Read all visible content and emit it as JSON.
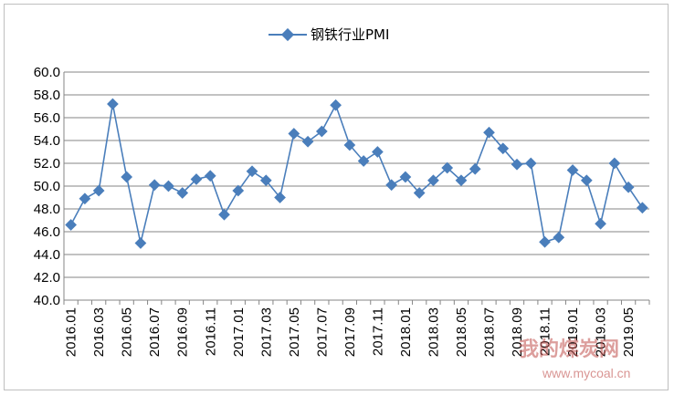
{
  "chart_data": {
    "type": "line",
    "title": "",
    "xlabel": "",
    "ylabel": "",
    "ylim": [
      40,
      60
    ],
    "yticks": [
      "40.0",
      "42.0",
      "44.0",
      "46.0",
      "48.0",
      "50.0",
      "52.0",
      "54.0",
      "56.0",
      "58.0",
      "60.0"
    ],
    "x": [
      "2016.01",
      "2016.02",
      "2016.03",
      "2016.04",
      "2016.05",
      "2016.06",
      "2016.07",
      "2016.08",
      "2016.09",
      "2016.10",
      "2016.11",
      "2016.12",
      "2017.01",
      "2017.02",
      "2017.03",
      "2017.04",
      "2017.05",
      "2017.06",
      "2017.07",
      "2017.08",
      "2017.09",
      "2017.10",
      "2017.11",
      "2017.12",
      "2018.01",
      "2018.02",
      "2018.03",
      "2018.04",
      "2018.05",
      "2018.06",
      "2018.07",
      "2018.08",
      "2018.09",
      "2018.10",
      "2018.11",
      "2018.12",
      "2019.01",
      "2019.02",
      "2019.03",
      "2019.04",
      "2019.05",
      "2019.06"
    ],
    "xtick_labels": [
      "2016.01",
      "2016.03",
      "2016.05",
      "2016.07",
      "2016.09",
      "2016.11",
      "2017.01",
      "2017.03",
      "2017.05",
      "2017.07",
      "2017.09",
      "2017.11",
      "2018.01",
      "2018.03",
      "2018.05",
      "2018.07",
      "2018.09",
      "2018.11",
      "2019.01",
      "2019.03",
      "2019.05"
    ],
    "series": [
      {
        "name": "钢铁行业PMI",
        "color": "#4a7ebb",
        "marker": "diamond",
        "values": [
          46.6,
          48.9,
          49.6,
          57.2,
          50.8,
          45.0,
          50.1,
          50.0,
          49.4,
          50.6,
          50.9,
          47.5,
          49.6,
          51.3,
          50.5,
          49.0,
          54.6,
          53.9,
          54.8,
          57.1,
          53.6,
          52.2,
          53.0,
          50.1,
          50.8,
          49.4,
          50.5,
          51.6,
          50.5,
          51.5,
          54.7,
          53.3,
          51.9,
          52.0,
          45.1,
          45.5,
          51.4,
          50.5,
          46.7,
          52.0,
          49.9,
          48.1
        ]
      }
    ],
    "grid": true,
    "legend_position": "top-center"
  },
  "watermark": {
    "text": "我的煤炭网",
    "url": "www.mycoal.cn"
  }
}
